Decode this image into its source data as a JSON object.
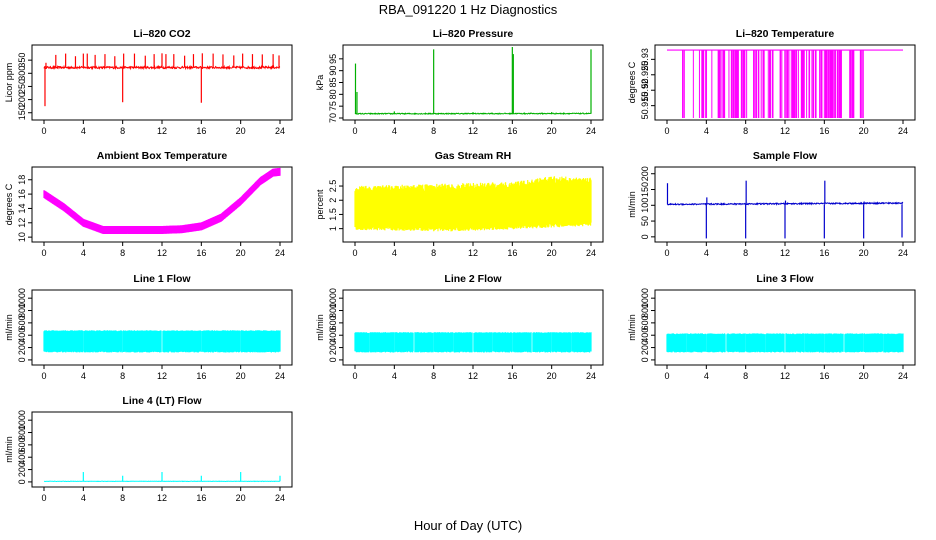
{
  "title": "RBA_091220  1 Hz Diagnostics",
  "xlabel": "Hour of Day (UTC)",
  "chart_data": [
    {
      "type": "line",
      "title": "Li–820 CO2",
      "ylabel": "Licor ppm",
      "color": "#ff0000",
      "xlim": [
        0,
        24
      ],
      "ylim": [
        130,
        400
      ],
      "xticks": [
        0,
        4,
        8,
        12,
        16,
        20,
        24
      ],
      "yticks": [
        150,
        200,
        250,
        300,
        350
      ],
      "pattern": "baseline",
      "baseline": [
        322,
        322
      ],
      "noise": 4,
      "spikes": [
        [
          0.1,
          175
        ],
        [
          0.2,
          340
        ],
        [
          1.2,
          370
        ],
        [
          2.2,
          375
        ],
        [
          3.2,
          365
        ],
        [
          4.0,
          375
        ],
        [
          4.4,
          375
        ],
        [
          5.2,
          370
        ],
        [
          6.2,
          373
        ],
        [
          7.2,
          365
        ],
        [
          8.0,
          190
        ],
        [
          8.1,
          375
        ],
        [
          9.2,
          375
        ],
        [
          10.3,
          367
        ],
        [
          11.2,
          373
        ],
        [
          12.0,
          376
        ],
        [
          12.4,
          373
        ],
        [
          13.2,
          373
        ],
        [
          14.3,
          367
        ],
        [
          15.2,
          373
        ],
        [
          16.0,
          188
        ],
        [
          16.1,
          376
        ],
        [
          17.2,
          375
        ],
        [
          18.2,
          372
        ],
        [
          19.3,
          368
        ],
        [
          20.2,
          375
        ],
        [
          21.2,
          373
        ],
        [
          22.2,
          372
        ],
        [
          23.3,
          373
        ],
        [
          23.9,
          368
        ]
      ]
    },
    {
      "type": "line",
      "title": "Li–820 Pressure",
      "ylabel": "kPa",
      "color": "#00b000",
      "xlim": [
        0,
        24
      ],
      "ylim": [
        70,
        100
      ],
      "xticks": [
        0,
        4,
        8,
        12,
        16,
        20,
        24
      ],
      "yticks": [
        70,
        75,
        80,
        85,
        90,
        95
      ],
      "pattern": "baseline",
      "baseline": [
        71.8,
        71.9
      ],
      "noise": 0.2,
      "spikes": [
        [
          0.05,
          93
        ],
        [
          0.2,
          81
        ],
        [
          4.0,
          72.8
        ],
        [
          8.0,
          99
        ],
        [
          12.0,
          72.5
        ],
        [
          16.0,
          100
        ],
        [
          16.1,
          97
        ],
        [
          20.0,
          72.5
        ],
        [
          24.0,
          99
        ]
      ]
    },
    {
      "type": "line",
      "title": "Li–820 Temperature",
      "ylabel": "degrees C",
      "color": "#ff00ff",
      "xlim": [
        0,
        24
      ],
      "ylim": [
        50.911,
        50.934
      ],
      "xticks": [
        0,
        4,
        8,
        12,
        16,
        20,
        24
      ],
      "yticks": [
        50.915,
        50.92,
        50.925,
        50.93
      ],
      "pattern": "drops",
      "top": 50.933,
      "bottom": 50.911,
      "drops": [
        [
          1.4,
          1.9
        ],
        [
          2.5,
          2.8
        ],
        [
          3.3,
          4.6
        ],
        [
          5.2,
          6.0
        ],
        [
          6.3,
          8.2
        ],
        [
          8.8,
          11.0
        ],
        [
          11.2,
          15.2
        ],
        [
          15.4,
          17.9
        ],
        [
          18.4,
          19.0
        ],
        [
          19.6,
          20.0
        ]
      ]
    },
    {
      "type": "line",
      "title": "Ambient Box Temperature",
      "ylabel": "degrees C",
      "color": "#ff00ff",
      "xlim": [
        0,
        24
      ],
      "ylim": [
        9.6,
        19.5
      ],
      "xticks": [
        0,
        4,
        8,
        12,
        16,
        20,
        24
      ],
      "yticks": [
        10,
        12,
        14,
        16,
        18
      ],
      "pattern": "band",
      "noise": 0.55,
      "curve": [
        [
          0,
          16.0
        ],
        [
          2,
          14.2
        ],
        [
          4,
          12.0
        ],
        [
          6,
          11.0
        ],
        [
          8,
          11.0
        ],
        [
          10,
          11.0
        ],
        [
          12,
          11.0
        ],
        [
          14,
          11.1
        ],
        [
          16,
          11.5
        ],
        [
          18,
          12.7
        ],
        [
          20,
          15.0
        ],
        [
          22,
          17.8
        ],
        [
          23.3,
          19.0
        ],
        [
          24,
          19.1
        ]
      ]
    },
    {
      "type": "line",
      "title": "Gas Stream RH",
      "ylabel": "percent",
      "color": "#ffff00",
      "xlim": [
        0,
        24
      ],
      "ylim": [
        0.6,
        3.1
      ],
      "xticks": [
        0,
        4,
        8,
        12,
        16,
        20,
        24
      ],
      "yticks": [
        1.0,
        1.5,
        2.0,
        2.5
      ],
      "pattern": "rh",
      "lower": [
        [
          0,
          0.95
        ],
        [
          10,
          0.9
        ],
        [
          18,
          1.0
        ],
        [
          24,
          1.1
        ]
      ],
      "upper": [
        [
          0,
          2.5
        ],
        [
          10,
          2.6
        ],
        [
          16,
          2.65
        ],
        [
          20,
          2.85
        ],
        [
          24,
          2.8
        ]
      ]
    },
    {
      "type": "line",
      "title": "Sample Flow",
      "ylabel": "ml/min",
      "color": "#0000cc",
      "xlim": [
        0,
        24
      ],
      "ylim": [
        -10,
        215
      ],
      "xticks": [
        0,
        4,
        8,
        12,
        16,
        20,
        24
      ],
      "yticks": [
        0,
        50,
        100,
        150,
        200
      ],
      "pattern": "baseline",
      "baseline": [
        103,
        107
      ],
      "noise": 2,
      "spikes": [
        [
          0.05,
          170
        ],
        [
          4.0,
          -5
        ],
        [
          4.05,
          125
        ],
        [
          8.0,
          -5
        ],
        [
          8.05,
          178
        ],
        [
          12.0,
          -5
        ],
        [
          12.05,
          115
        ],
        [
          16.0,
          -5
        ],
        [
          16.05,
          178
        ],
        [
          20.0,
          -5
        ],
        [
          20.05,
          112
        ],
        [
          23.9,
          -2
        ]
      ]
    },
    {
      "type": "line",
      "title": "Line 1 Flow",
      "ylabel": "ml/min",
      "color": "#00ffff",
      "xlim": [
        0,
        24
      ],
      "ylim": [
        -50,
        1100
      ],
      "xticks": [
        0,
        4,
        8,
        12,
        16,
        20,
        24
      ],
      "yticks": [
        0,
        200,
        400,
        600,
        800,
        1000
      ],
      "pattern": "flow",
      "low": 120,
      "high": 480,
      "gaps": [
        4,
        8,
        12,
        16,
        20
      ]
    },
    {
      "type": "line",
      "title": "Line 2 Flow",
      "ylabel": "ml/min",
      "color": "#00ffff",
      "xlim": [
        0,
        24
      ],
      "ylim": [
        -50,
        1100
      ],
      "xticks": [
        0,
        4,
        8,
        12,
        16,
        20,
        24
      ],
      "yticks": [
        0,
        200,
        400,
        600,
        800,
        1000
      ],
      "pattern": "flow",
      "low": 120,
      "high": 450,
      "gaps": [
        1.5,
        4,
        6,
        8,
        10,
        12,
        14,
        16,
        18,
        20,
        22
      ]
    },
    {
      "type": "line",
      "title": "Line 3 Flow",
      "ylabel": "ml/min",
      "color": "#00ffff",
      "xlim": [
        0,
        24
      ],
      "ylim": [
        -50,
        1100
      ],
      "xticks": [
        0,
        4,
        8,
        12,
        16,
        20,
        24
      ],
      "yticks": [
        0,
        200,
        400,
        600,
        800,
        1000
      ],
      "pattern": "flow",
      "low": 120,
      "high": 430,
      "gaps": [
        2,
        4,
        6,
        8,
        10,
        12,
        14,
        16,
        18,
        20,
        22
      ]
    },
    {
      "type": "line",
      "title": "Line 4 (LT) Flow",
      "ylabel": "ml/min",
      "color": "#00ffff",
      "xlim": [
        0,
        24
      ],
      "ylim": [
        -50,
        1100
      ],
      "xticks": [
        0,
        4,
        8,
        12,
        16,
        20,
        24
      ],
      "yticks": [
        0,
        200,
        400,
        600,
        800,
        1000
      ],
      "pattern": "baseline",
      "baseline": [
        10,
        10
      ],
      "noise": 3,
      "spikes": [
        [
          4.0,
          160
        ],
        [
          8.0,
          100
        ],
        [
          12.0,
          160
        ],
        [
          16.0,
          100
        ],
        [
          20.0,
          160
        ],
        [
          24.0,
          100
        ]
      ]
    }
  ]
}
